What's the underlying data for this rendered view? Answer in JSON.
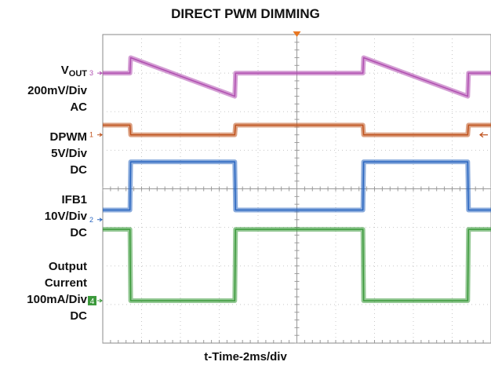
{
  "chart_data": {
    "type": "line",
    "title": "DIRECT PWM DIMMING",
    "xlabel": "t-Time-2ms/div",
    "x_divisions": 10,
    "y_divisions": 8,
    "x": [
      0,
      0.7,
      0.72,
      3.4,
      3.42,
      6.0,
      6.7,
      6.72,
      9.4,
      9.42,
      10.0
    ],
    "channels": [
      {
        "id": "3",
        "name": "V",
        "name_sub": "OUT",
        "scale": "200mV/Div",
        "coupling": "AC",
        "color": "#b04fb0",
        "marker_y": 7.0,
        "values": [
          7.0,
          7.0,
          7.4,
          6.4,
          7.0,
          7.0,
          7.0,
          7.4,
          6.4,
          7.0,
          7.0
        ]
      },
      {
        "id": "1",
        "name": "DPWM",
        "scale": "5V/Div",
        "coupling": "DC",
        "color": "#c0531e",
        "marker_y": 5.4,
        "values": [
          5.65,
          5.65,
          5.4,
          5.4,
          5.65,
          5.65,
          5.65,
          5.4,
          5.4,
          5.65,
          5.65
        ]
      },
      {
        "id": "2",
        "name": "IFB1",
        "scale": "10V/Div",
        "coupling": "DC",
        "color": "#2a66c0",
        "marker_y": 3.2,
        "values": [
          3.45,
          3.45,
          4.7,
          4.7,
          3.45,
          3.45,
          3.45,
          4.7,
          4.7,
          3.45,
          3.45
        ]
      },
      {
        "id": "4",
        "name": "Output",
        "name2": "Current",
        "scale": "100mA/Div",
        "coupling": "DC",
        "color": "#3c9a3c",
        "marker_y": 1.1,
        "values": [
          2.95,
          2.95,
          1.1,
          1.1,
          2.95,
          2.95,
          2.95,
          1.1,
          1.1,
          2.95,
          2.95
        ]
      }
    ]
  }
}
